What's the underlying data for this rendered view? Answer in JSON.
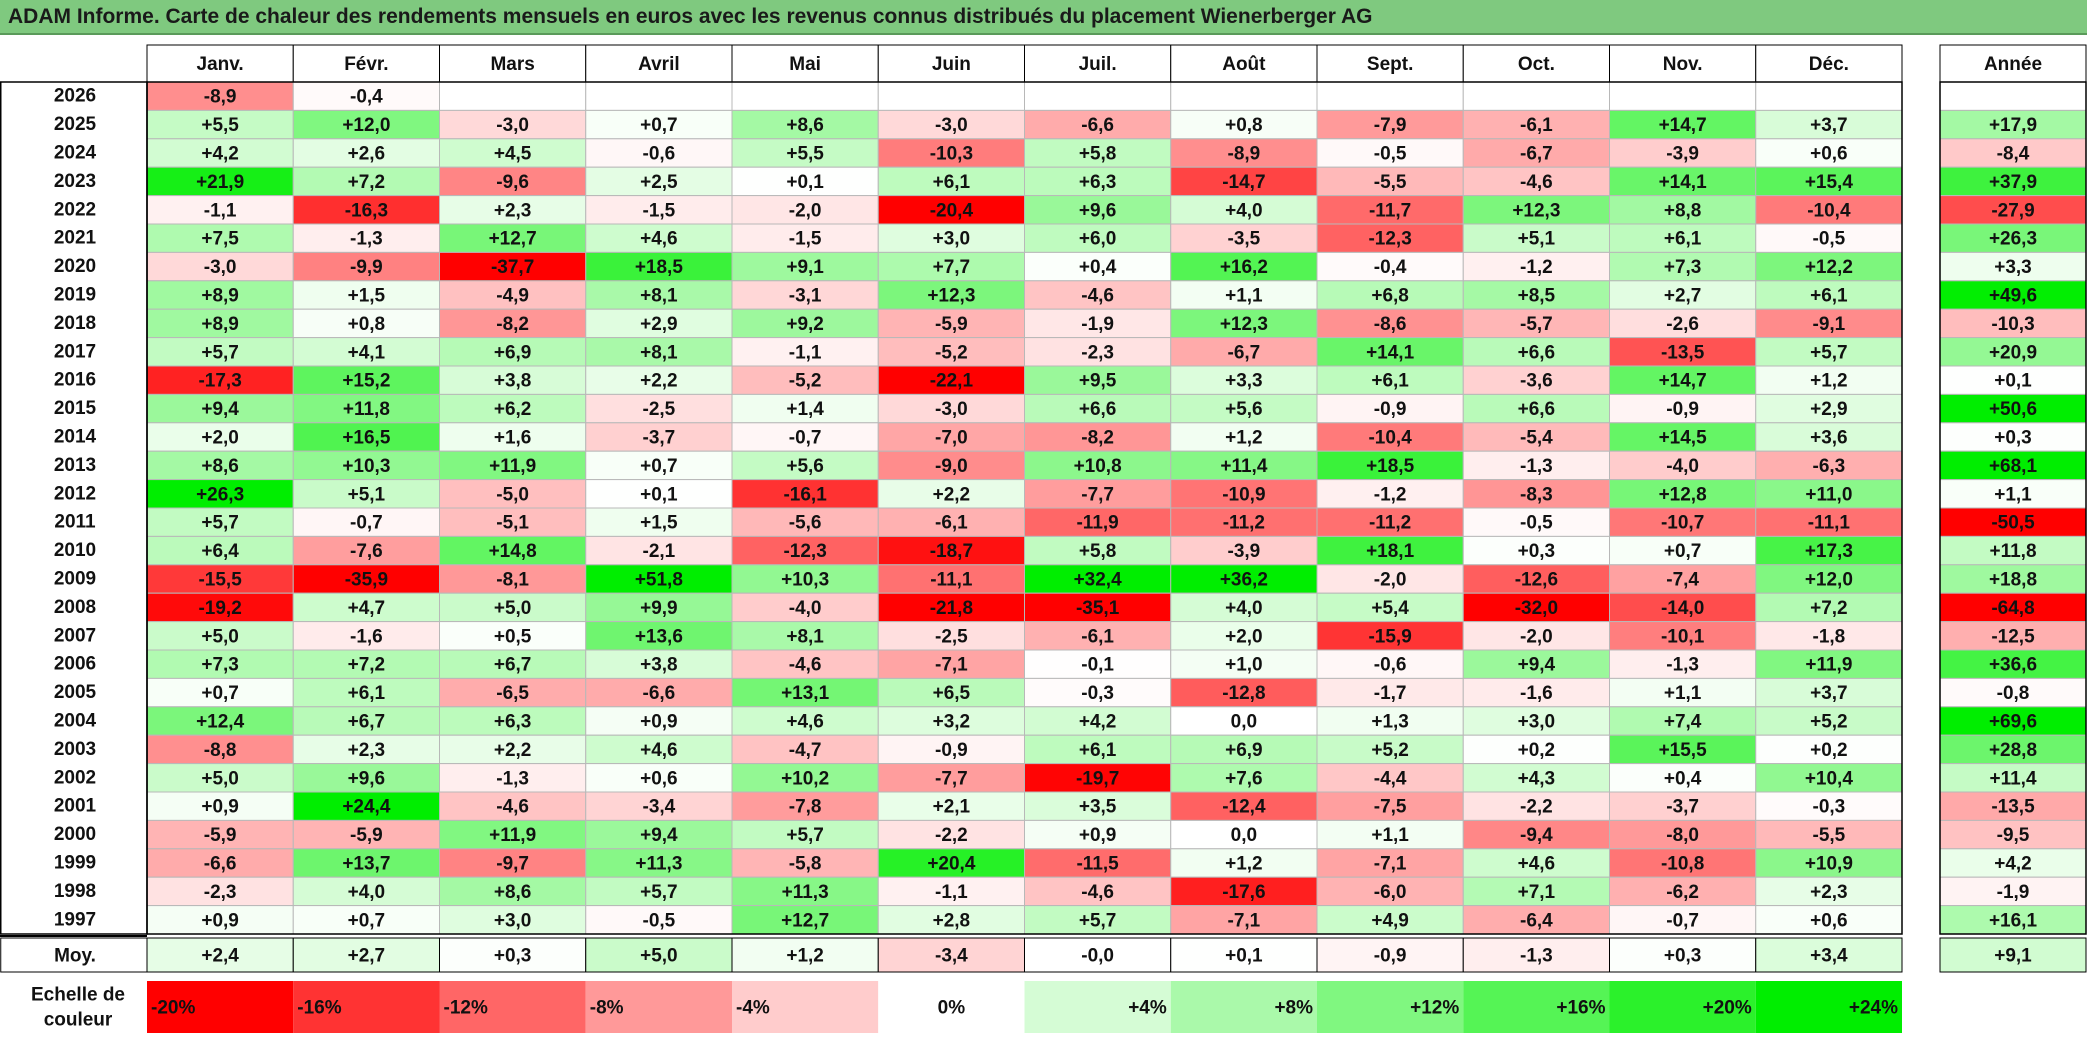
{
  "title": "ADAM Informe. Carte de chaleur des rendements mensuels en euros avec les revenus connus distribués du placement Wienerberger AG",
  "chart_data": {
    "type": "heatmap",
    "months": [
      "Janv.",
      "Févr.",
      "Mars",
      "Avril",
      "Mai",
      "Juin",
      "Juil.",
      "Août",
      "Sept.",
      "Oct.",
      "Nov.",
      "Déc."
    ],
    "year_header": "Année",
    "rows": [
      {
        "year": "2026",
        "months": [
          "-8,9",
          "-0,4",
          "",
          "",
          "",
          "",
          "",
          "",
          "",
          "",
          "",
          ""
        ],
        "annual": ""
      },
      {
        "year": "2025",
        "months": [
          "+5,5",
          "+12,0",
          "-3,0",
          "+0,7",
          "+8,6",
          "-3,0",
          "-6,6",
          "+0,8",
          "-7,9",
          "-6,1",
          "+14,7",
          "+3,7"
        ],
        "annual": "+17,9"
      },
      {
        "year": "2024",
        "months": [
          "+4,2",
          "+2,6",
          "+4,5",
          "-0,6",
          "+5,5",
          "-10,3",
          "+5,8",
          "-8,9",
          "-0,5",
          "-6,7",
          "-3,9",
          "+0,6"
        ],
        "annual": "-8,4"
      },
      {
        "year": "2023",
        "months": [
          "+21,9",
          "+7,2",
          "-9,6",
          "+2,5",
          "+0,1",
          "+6,1",
          "+6,3",
          "-14,7",
          "-5,5",
          "-4,6",
          "+14,1",
          "+15,4"
        ],
        "annual": "+37,9"
      },
      {
        "year": "2022",
        "months": [
          "-1,1",
          "-16,3",
          "+2,3",
          "-1,5",
          "-2,0",
          "-20,4",
          "+9,6",
          "+4,0",
          "-11,7",
          "+12,3",
          "+8,8",
          "-10,4"
        ],
        "annual": "-27,9"
      },
      {
        "year": "2021",
        "months": [
          "+7,5",
          "-1,3",
          "+12,7",
          "+4,6",
          "-1,5",
          "+3,0",
          "+6,0",
          "-3,5",
          "-12,3",
          "+5,1",
          "+6,1",
          "-0,5"
        ],
        "annual": "+26,3"
      },
      {
        "year": "2020",
        "months": [
          "-3,0",
          "-9,9",
          "-37,7",
          "+18,5",
          "+9,1",
          "+7,7",
          "+0,4",
          "+16,2",
          "-0,4",
          "-1,2",
          "+7,3",
          "+12,2"
        ],
        "annual": "+3,3"
      },
      {
        "year": "2019",
        "months": [
          "+8,9",
          "+1,5",
          "-4,9",
          "+8,1",
          "-3,1",
          "+12,3",
          "-4,6",
          "+1,1",
          "+6,8",
          "+8,5",
          "+2,7",
          "+6,1"
        ],
        "annual": "+49,6"
      },
      {
        "year": "2018",
        "months": [
          "+8,9",
          "+0,8",
          "-8,2",
          "+2,9",
          "+9,2",
          "-5,9",
          "-1,9",
          "+12,3",
          "-8,6",
          "-5,7",
          "-2,6",
          "-9,1"
        ],
        "annual": "-10,3"
      },
      {
        "year": "2017",
        "months": [
          "+5,7",
          "+4,1",
          "+6,9",
          "+8,1",
          "-1,1",
          "-5,2",
          "-2,3",
          "-6,7",
          "+14,1",
          "+6,6",
          "-13,5",
          "+5,7"
        ],
        "annual": "+20,9"
      },
      {
        "year": "2016",
        "months": [
          "-17,3",
          "+15,2",
          "+3,8",
          "+2,2",
          "-5,2",
          "-22,1",
          "+9,5",
          "+3,3",
          "+6,1",
          "-3,6",
          "+14,7",
          "+1,2"
        ],
        "annual": "+0,1"
      },
      {
        "year": "2015",
        "months": [
          "+9,4",
          "+11,8",
          "+6,2",
          "-2,5",
          "+1,4",
          "-3,0",
          "+6,6",
          "+5,6",
          "-0,9",
          "+6,6",
          "-0,9",
          "+2,9"
        ],
        "annual": "+50,6"
      },
      {
        "year": "2014",
        "months": [
          "+2,0",
          "+16,5",
          "+1,6",
          "-3,7",
          "-0,7",
          "-7,0",
          "-8,2",
          "+1,2",
          "-10,4",
          "-5,4",
          "+14,5",
          "+3,6"
        ],
        "annual": "+0,3"
      },
      {
        "year": "2013",
        "months": [
          "+8,6",
          "+10,3",
          "+11,9",
          "+0,7",
          "+5,6",
          "-9,0",
          "+10,8",
          "+11,4",
          "+18,5",
          "-1,3",
          "-4,0",
          "-6,3"
        ],
        "annual": "+68,1"
      },
      {
        "year": "2012",
        "months": [
          "+26,3",
          "+5,1",
          "-5,0",
          "+0,1",
          "-16,1",
          "+2,2",
          "-7,7",
          "-10,9",
          "-1,2",
          "-8,3",
          "+12,8",
          "+11,0"
        ],
        "annual": "+1,1"
      },
      {
        "year": "2011",
        "months": [
          "+5,7",
          "-0,7",
          "-5,1",
          "+1,5",
          "-5,6",
          "-6,1",
          "-11,9",
          "-11,2",
          "-11,2",
          "-0,5",
          "-10,7",
          "-11,1"
        ],
        "annual": "-50,5"
      },
      {
        "year": "2010",
        "months": [
          "+6,4",
          "-7,6",
          "+14,8",
          "-2,1",
          "-12,3",
          "-18,7",
          "+5,8",
          "-3,9",
          "+18,1",
          "+0,3",
          "+0,7",
          "+17,3"
        ],
        "annual": "+11,8"
      },
      {
        "year": "2009",
        "months": [
          "-15,5",
          "-35,9",
          "-8,1",
          "+51,8",
          "+10,3",
          "-11,1",
          "+32,4",
          "+36,2",
          "-2,0",
          "-12,6",
          "-7,4",
          "+12,0"
        ],
        "annual": "+18,8"
      },
      {
        "year": "2008",
        "months": [
          "-19,2",
          "+4,7",
          "+5,0",
          "+9,9",
          "-4,0",
          "-21,8",
          "-35,1",
          "+4,0",
          "+5,4",
          "-32,0",
          "-14,0",
          "+7,2"
        ],
        "annual": "-64,8"
      },
      {
        "year": "2007",
        "months": [
          "+5,0",
          "-1,6",
          "+0,5",
          "+13,6",
          "+8,1",
          "-2,5",
          "-6,1",
          "+2,0",
          "-15,9",
          "-2,0",
          "-10,1",
          "-1,8"
        ],
        "annual": "-12,5"
      },
      {
        "year": "2006",
        "months": [
          "+7,3",
          "+7,2",
          "+6,7",
          "+3,8",
          "-4,6",
          "-7,1",
          "-0,1",
          "+1,0",
          "-0,6",
          "+9,4",
          "-1,3",
          "+11,9"
        ],
        "annual": "+36,6"
      },
      {
        "year": "2005",
        "months": [
          "+0,7",
          "+6,1",
          "-6,5",
          "-6,6",
          "+13,1",
          "+6,5",
          "-0,3",
          "-12,8",
          "-1,7",
          "-1,6",
          "+1,1",
          "+3,7"
        ],
        "annual": "-0,8"
      },
      {
        "year": "2004",
        "months": [
          "+12,4",
          "+6,7",
          "+6,3",
          "+0,9",
          "+4,6",
          "+3,2",
          "+4,2",
          "0,0",
          "+1,3",
          "+3,0",
          "+7,4",
          "+5,2"
        ],
        "annual": "+69,6"
      },
      {
        "year": "2003",
        "months": [
          "-8,8",
          "+2,3",
          "+2,2",
          "+4,6",
          "-4,7",
          "-0,9",
          "+6,1",
          "+6,9",
          "+5,2",
          "+0,2",
          "+15,5",
          "+0,2"
        ],
        "annual": "+28,8"
      },
      {
        "year": "2002",
        "months": [
          "+5,0",
          "+9,6",
          "-1,3",
          "+0,6",
          "+10,2",
          "-7,7",
          "-19,7",
          "+7,6",
          "-4,4",
          "+4,3",
          "+0,4",
          "+10,4"
        ],
        "annual": "+11,4"
      },
      {
        "year": "2001",
        "months": [
          "+0,9",
          "+24,4",
          "-4,6",
          "-3,4",
          "-7,8",
          "+2,1",
          "+3,5",
          "-12,4",
          "-7,5",
          "-2,2",
          "-3,7",
          "-0,3"
        ],
        "annual": "-13,5"
      },
      {
        "year": "2000",
        "months": [
          "-5,9",
          "-5,9",
          "+11,9",
          "+9,4",
          "+5,7",
          "-2,2",
          "+0,9",
          "0,0",
          "+1,1",
          "-9,4",
          "-8,0",
          "-5,5"
        ],
        "annual": "-9,5"
      },
      {
        "year": "1999",
        "months": [
          "-6,6",
          "+13,7",
          "-9,7",
          "+11,3",
          "-5,8",
          "+20,4",
          "-11,5",
          "+1,2",
          "-7,1",
          "+4,6",
          "-10,8",
          "+10,9"
        ],
        "annual": "+4,2"
      },
      {
        "year": "1998",
        "months": [
          "-2,3",
          "+4,0",
          "+8,6",
          "+5,7",
          "+11,3",
          "-1,1",
          "-4,6",
          "-17,6",
          "-6,0",
          "+7,1",
          "-6,2",
          "+2,3"
        ],
        "annual": "-1,9"
      },
      {
        "year": "1997",
        "months": [
          "+0,9",
          "+0,7",
          "+3,0",
          "-0,5",
          "+12,7",
          "+2,8",
          "+5,7",
          "-7,1",
          "+4,9",
          "-6,4",
          "-0,7",
          "+0,6"
        ],
        "annual": "+16,1"
      }
    ],
    "average": {
      "label": "Moy.",
      "months": [
        "+2,4",
        "+2,7",
        "+0,3",
        "+5,0",
        "+1,2",
        "-3,4",
        "-0,0",
        "+0,1",
        "-0,9",
        "-1,3",
        "+0,3",
        "+3,4"
      ],
      "annual": "+9,1"
    },
    "scale": {
      "label_line1": "Echelle de",
      "label_line2": "couleur",
      "stops": [
        "-20%",
        "-16%",
        "-12%",
        "-8%",
        "-4%",
        "0%",
        "+4%",
        "+8%",
        "+12%",
        "+16%",
        "+20%",
        "+24%"
      ],
      "values": [
        -20,
        -16,
        -12,
        -8,
        -4,
        0,
        4,
        8,
        12,
        16,
        20,
        24
      ]
    },
    "colors": {
      "negative_max": "#ff0000",
      "zero": "#ffffff",
      "positive_max": "#00ee00",
      "title_bar": "#7fc97f"
    }
  }
}
